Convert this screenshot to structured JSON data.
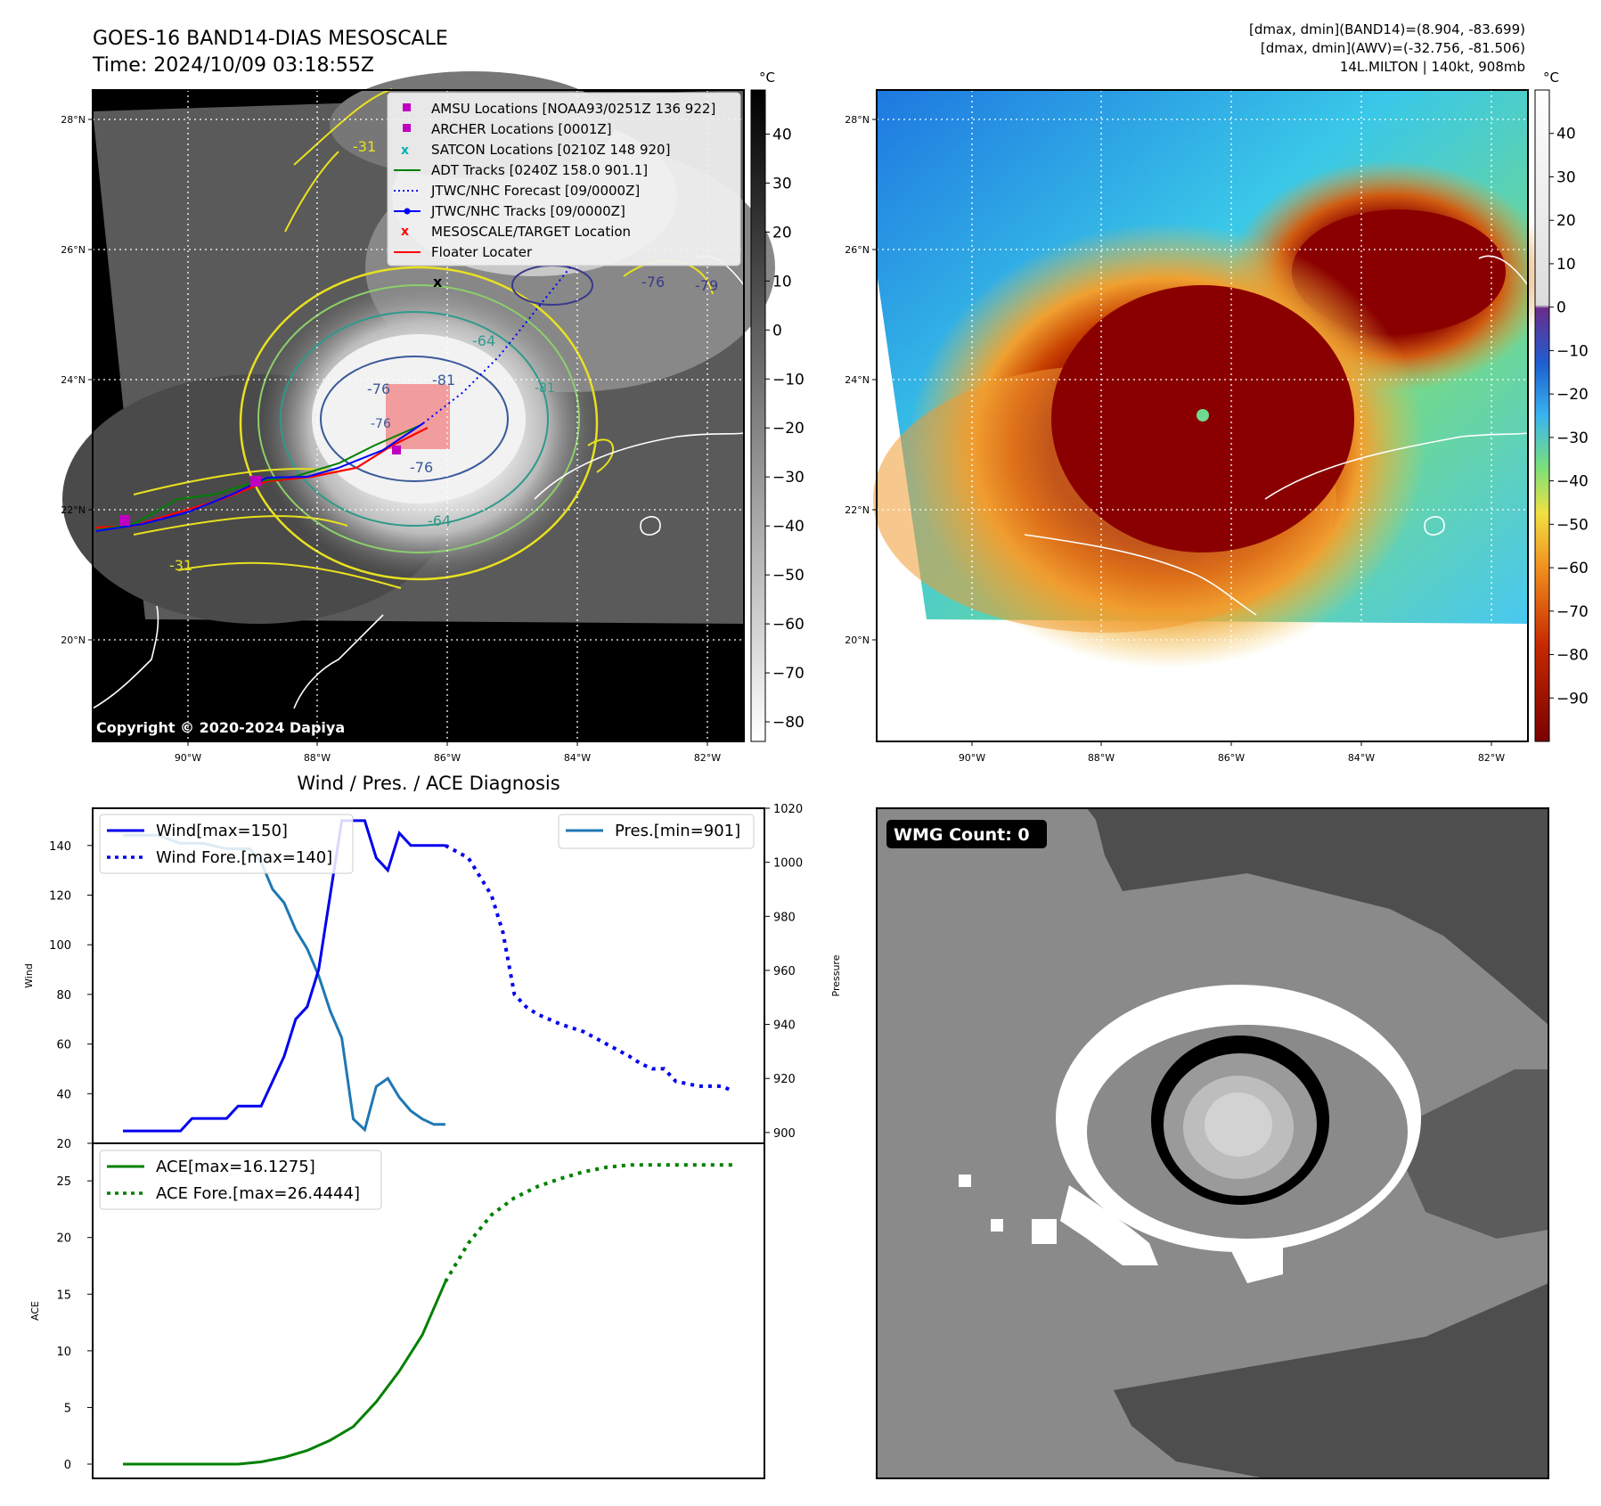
{
  "header": {
    "title": "GOES-16 BAND14-DIAS MESOSCALE",
    "time": "Time: 2024/10/09 03:18:55Z",
    "dmax_band14": "[dmax, dmin](BAND14)=(8.904, -83.699)",
    "dmax_awv": "[dmax, dmin](AWV)=(-32.756, -81.506)",
    "storm": "14L.MILTON | 140kt, 908mb"
  },
  "map": {
    "lat_labels": [
      "28°N",
      "26°N",
      "24°N",
      "22°N",
      "20°N"
    ],
    "lon_labels": [
      "90°W",
      "88°W",
      "86°W",
      "84°W",
      "82°W"
    ],
    "copyright": "Copyright © 2020-2024 Dapiya",
    "contour_labels": [
      "-76",
      "-81",
      "-64",
      "-76",
      "-64",
      "-76",
      "-79",
      "-31",
      "-31",
      "-76",
      "-81"
    ],
    "colorbar_unit": "°C",
    "gray_colorbar_ticks": [
      "40",
      "30",
      "20",
      "10",
      "0",
      "−10",
      "−20",
      "−30",
      "−40",
      "−50",
      "−60",
      "−70",
      "−80"
    ],
    "color_colorbar_ticks": [
      "40",
      "30",
      "20",
      "10",
      "0",
      "−10",
      "−20",
      "−30",
      "−40",
      "−50",
      "−60",
      "−70",
      "−80",
      "−90"
    ],
    "legend": [
      {
        "label": "AMSU Locations [NOAA93/0251Z 136 922]",
        "marker": "square",
        "color": "#c000c0"
      },
      {
        "label": "ARCHER Locations [0001Z]",
        "marker": "square",
        "color": "#c000c0"
      },
      {
        "label": "SATCON Locations [0210Z 148 920]",
        "marker": "x",
        "color": "#00b0b0"
      },
      {
        "label": "ADT Tracks [0240Z 158.0 901.1]",
        "marker": "line",
        "color": "#008000"
      },
      {
        "label": "JTWC/NHC Forecast [09/0000Z]",
        "marker": "dotted",
        "color": "#0000ff"
      },
      {
        "label": "JTWC/NHC Tracks [09/0000Z]",
        "marker": "line-dot",
        "color": "#0000ff"
      },
      {
        "label": "MESOSCALE/TARGET Location",
        "marker": "x",
        "color": "#ff0000"
      },
      {
        "label": "Floater Locater",
        "marker": "line",
        "color": "#ff0000"
      }
    ]
  },
  "panel3": {
    "title": "Wind / Pres. / ACE Diagnosis",
    "wind_ylabel": "Wind",
    "pres_ylabel": "Pressure",
    "ace_ylabel": "ACE",
    "wind_ticks": [
      "140",
      "120",
      "100",
      "80",
      "60",
      "40",
      "20"
    ],
    "pres_ticks": [
      "1020",
      "1000",
      "980",
      "960",
      "940",
      "920",
      "900"
    ],
    "ace_ticks": [
      "25",
      "20",
      "15",
      "10",
      "5",
      "0"
    ],
    "legend_wind": "Wind[max=150]",
    "legend_wind_fore": "Wind Fore.[max=140]",
    "legend_pres": "Pres.[min=901]",
    "legend_ace": "ACE[max=16.1275]",
    "legend_ace_fore": "ACE Fore.[max=26.4444]"
  },
  "panel4": {
    "badge": "WMG Count: 0"
  },
  "colors": {
    "wind": "#0000ee",
    "pressure": "#1f77b4",
    "ace": "#008000"
  },
  "chart_data": [
    {
      "type": "line",
      "title": "Wind / Pres. / ACE Diagnosis",
      "ylabel": "Wind",
      "ylim": [
        20,
        155
      ],
      "x": [
        0,
        1,
        2,
        3,
        4,
        5,
        6,
        7,
        8,
        9,
        10,
        11,
        12,
        13,
        14,
        15,
        16,
        17,
        18,
        19,
        20,
        21,
        22,
        23,
        24,
        25,
        26,
        27,
        28,
        29,
        30,
        31,
        32,
        33,
        34,
        35,
        36,
        37,
        38,
        39,
        40,
        41,
        42,
        43,
        44,
        45,
        46,
        47,
        48,
        49,
        50,
        51,
        52,
        53
      ],
      "series": [
        {
          "name": "Wind[max=150]",
          "x": [
            0,
            2,
            4,
            5,
            6,
            8,
            9,
            10,
            12,
            13,
            14,
            15,
            16,
            17,
            18,
            19,
            20,
            21,
            22,
            23,
            24,
            25,
            26,
            27,
            28
          ],
          "values": [
            25,
            25,
            25,
            25,
            30,
            30,
            30,
            35,
            35,
            45,
            55,
            70,
            75,
            90,
            120,
            150,
            150,
            150,
            135,
            130,
            145,
            140,
            140,
            140,
            140
          ]
        },
        {
          "name": "Wind Fore.[max=140]",
          "x": [
            28,
            30,
            32,
            33,
            34,
            35,
            36,
            38,
            40,
            42,
            44,
            45,
            46,
            47,
            48,
            50,
            52,
            53
          ],
          "values": [
            140,
            135,
            120,
            105,
            80,
            75,
            72,
            68,
            65,
            60,
            55,
            52,
            50,
            50,
            45,
            43,
            43,
            41
          ]
        },
        {
          "name": "Pres.[min=901]",
          "axis": "right",
          "ylim": [
            896,
            1020
          ],
          "x": [
            0,
            3,
            5,
            7,
            9,
            11,
            12,
            13,
            14,
            15,
            16,
            17,
            18,
            19,
            20,
            21,
            22,
            23,
            24,
            25,
            26,
            27,
            28
          ],
          "values": [
            1010,
            1010,
            1007,
            1007,
            1005,
            1005,
            1000,
            990,
            985,
            975,
            968,
            958,
            945,
            935,
            905,
            901,
            917,
            920,
            913,
            908,
            905,
            903,
            903
          ]
        }
      ]
    },
    {
      "type": "line",
      "ylabel": "ACE",
      "ylim": [
        0,
        28
      ],
      "series": [
        {
          "name": "ACE[max=16.1275]",
          "x": [
            0,
            2,
            4,
            6,
            8,
            10,
            12,
            14,
            16,
            18,
            20,
            22,
            24,
            26,
            28
          ],
          "values": [
            0,
            0,
            0,
            0,
            0,
            0,
            0.2,
            0.6,
            1.2,
            2.1,
            3.3,
            5.5,
            8.2,
            11.4,
            16.1
          ]
        },
        {
          "name": "ACE Fore.[max=26.4444]",
          "x": [
            28,
            30,
            32,
            34,
            36,
            38,
            40,
            42,
            44,
            46,
            48,
            50,
            52,
            53
          ],
          "values": [
            16.1,
            19.5,
            22,
            23.5,
            24.5,
            25.2,
            25.8,
            26.2,
            26.4,
            26.4,
            26.4,
            26.4,
            26.4,
            26.4
          ]
        }
      ]
    }
  ]
}
